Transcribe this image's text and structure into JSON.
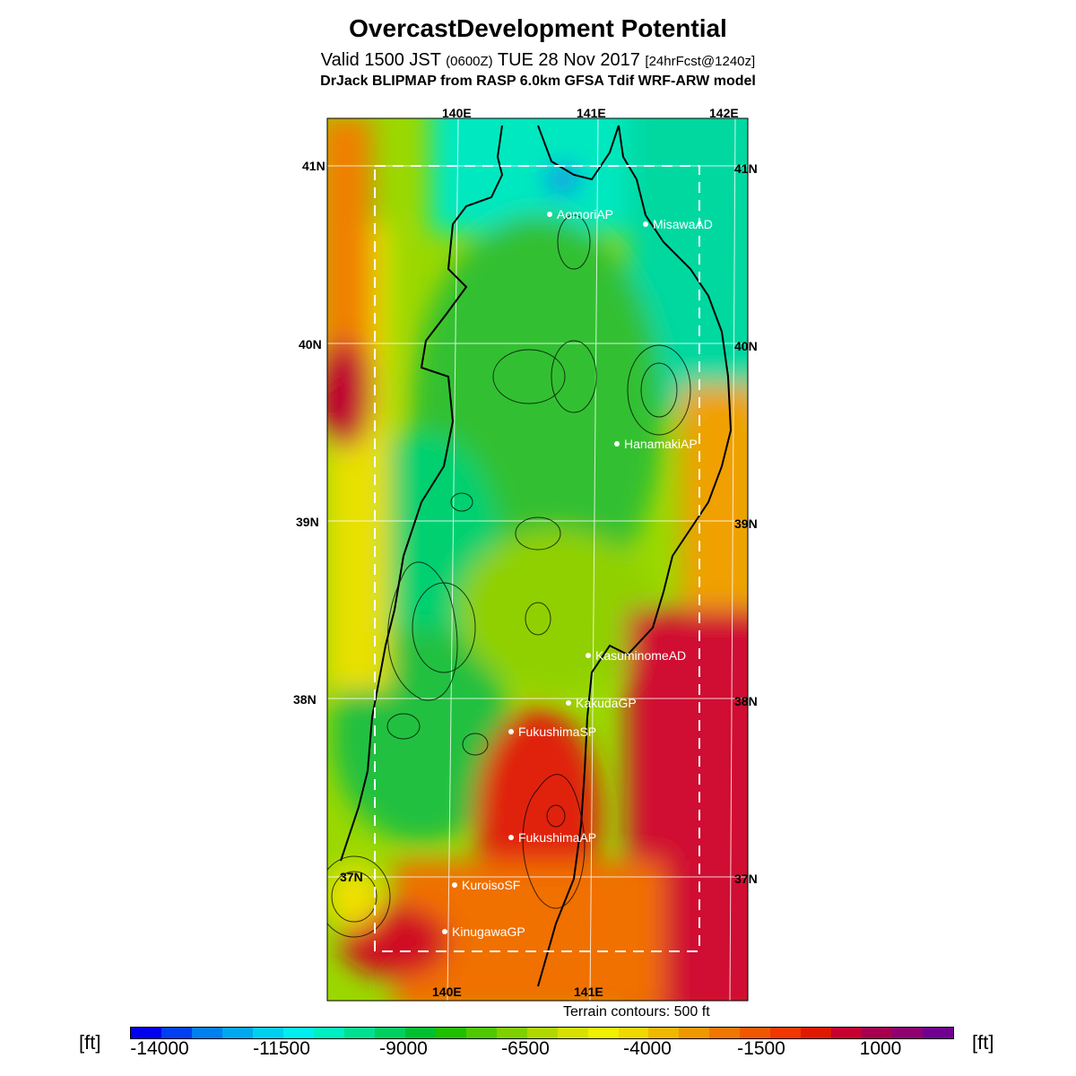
{
  "title": "OvercastDevelopment Potential",
  "subtitle": {
    "valid_a": "Valid 1500 JST ",
    "valid_b": "(0600Z)",
    "valid_c": " TUE 28 Nov 2017 ",
    "valid_d": "[24hrFcst@1240z]"
  },
  "model_line": "DrJack BLIPMAP from RASP 6.0km GFSA Tdif WRF-ARW model",
  "axis_labels": {
    "top": [
      "140E",
      "141E",
      "142E"
    ],
    "bottom": [
      "140E",
      "141E"
    ],
    "left": [
      "41N",
      "40N",
      "39N",
      "38N",
      "37N"
    ],
    "right": [
      "41N",
      "40N",
      "39N",
      "38N",
      "37N"
    ]
  },
  "stations": [
    "AomoriAP",
    "MisawaAD",
    "HanamakiAP",
    "KasuminomeAD",
    "KakudaGP",
    "FukushimaSP",
    "FukushimaAP",
    "KuroisoSF",
    "KinugawaGP"
  ],
  "terrain_note": "Terrain contours: 500 ft",
  "colorbar": {
    "unit_left": "[ft]",
    "unit_right": "[ft]",
    "tick_labels": [
      "-14000",
      "-11500",
      "-9000",
      "-6500",
      "-4000",
      "-1500",
      "1000"
    ],
    "colors": [
      "#0000f0",
      "#0040f0",
      "#0080f0",
      "#00a8f0",
      "#00d0f0",
      "#00f0f0",
      "#00f0c0",
      "#00e090",
      "#00d060",
      "#00c030",
      "#20c000",
      "#50c800",
      "#80d000",
      "#b0d800",
      "#d8e000",
      "#f0f000",
      "#f0d800",
      "#f0b800",
      "#f09800",
      "#f07800",
      "#f05800",
      "#f03800",
      "#e01800",
      "#c80030",
      "#a80050",
      "#900070",
      "#700090"
    ]
  }
}
